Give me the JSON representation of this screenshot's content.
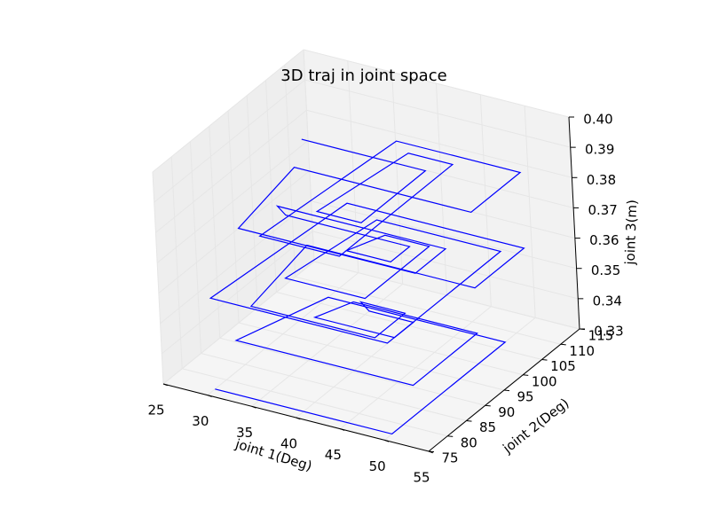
{
  "chart_data": {
    "type": "line3d",
    "title": "3D traj in joint space",
    "xlabel": "joint 1(Deg)",
    "ylabel": "joint 2(Deg)",
    "zlabel": "joint 3(m)",
    "xlim": [
      25,
      55
    ],
    "ylim": [
      75,
      115
    ],
    "zlim": [
      0.33,
      0.4
    ],
    "x_ticks": [
      "25",
      "30",
      "35",
      "40",
      "45",
      "50",
      "55"
    ],
    "y_ticks": [
      "75",
      "80",
      "85",
      "90",
      "95",
      "100",
      "105",
      "110",
      "115"
    ],
    "z_ticks": [
      "0.33",
      "0.34",
      "0.35",
      "0.36",
      "0.37",
      "0.38",
      "0.39",
      "0.40"
    ],
    "grid": true,
    "series_color": "#0000ff",
    "series": [
      {
        "x": [
          30,
          50,
          50,
          30,
          30,
          50,
          50,
          36,
          36,
          45,
          45,
          40,
          40,
          45,
          45,
          31,
          31,
          50,
          50,
          30,
          30,
          50,
          50,
          36,
          36,
          45,
          45,
          40,
          40,
          45,
          45,
          31,
          31,
          50,
          50,
          30,
          30,
          50,
          50,
          36,
          36,
          45,
          45,
          40,
          40,
          45,
          45,
          31
        ],
        "y": [
          77,
          77,
          107,
          107,
          83,
          83,
          100,
          100,
          90,
          90,
          95,
          95,
          93,
          93,
          85,
          85,
          100,
          100,
          113,
          113,
          77,
          77,
          107,
          107,
          83,
          83,
          100,
          100,
          90,
          90,
          95,
          95,
          93,
          93,
          85,
          85,
          100,
          100,
          113,
          113,
          77,
          77,
          107,
          107,
          83,
          83,
          100,
          100
        ],
        "z": [
          0.33,
          0.33,
          0.33,
          0.33,
          0.34,
          0.34,
          0.34,
          0.34,
          0.345,
          0.345,
          0.345,
          0.345,
          0.35,
          0.35,
          0.35,
          0.35,
          0.355,
          0.355,
          0.355,
          0.355,
          0.36,
          0.36,
          0.36,
          0.36,
          0.365,
          0.365,
          0.365,
          0.365,
          0.37,
          0.37,
          0.37,
          0.37,
          0.375,
          0.375,
          0.375,
          0.375,
          0.38,
          0.38,
          0.38,
          0.38,
          0.385,
          0.385,
          0.385,
          0.385,
          0.39,
          0.39,
          0.39,
          0.39
        ]
      }
    ]
  }
}
